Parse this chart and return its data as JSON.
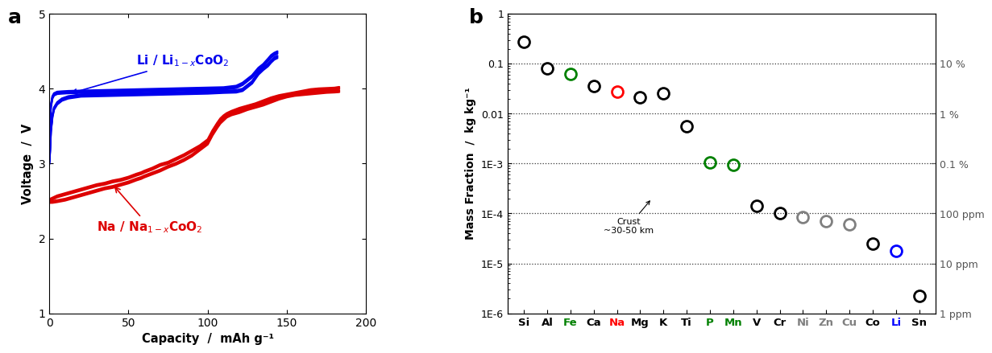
{
  "panel_a": {
    "title_label": "a",
    "xlabel": "Capacity  /  mAh g⁻¹",
    "ylabel": "Voltage  /  V",
    "ylim": [
      1.0,
      5.0
    ],
    "xlim": [
      0,
      200
    ],
    "li_color": "#0000EE",
    "na_color": "#DD0000"
  },
  "panel_b": {
    "title_label": "b",
    "ylabel": "Mass Fraction  /  kg kg⁻¹",
    "ylabel_right": [
      "10 %",
      "1 %",
      "0.1 %",
      "100 ppm",
      "10 ppm",
      "1 ppm"
    ],
    "ylabel_right_vals": [
      0.1,
      0.01,
      0.001,
      0.0001,
      1e-05,
      1e-06
    ],
    "ylim_log": [
      1e-06,
      1.0
    ],
    "elements": [
      "Si",
      "Al",
      "Fe",
      "Ca",
      "Na",
      "Mg",
      "K",
      "Ti",
      "P",
      "Mn",
      "V",
      "Cr",
      "Ni",
      "Zn",
      "Cu",
      "Co",
      "Li",
      "Sn"
    ],
    "values": [
      0.277,
      0.081,
      0.063,
      0.036,
      0.028,
      0.021,
      0.026,
      0.0056,
      0.00105,
      0.00095,
      0.00014,
      0.000102,
      8.5e-05,
      7e-05,
      6e-05,
      2.5e-05,
      1.8e-05,
      2.2e-06
    ],
    "colors": [
      "black",
      "black",
      "green",
      "black",
      "red",
      "black",
      "black",
      "black",
      "green",
      "green",
      "black",
      "black",
      "gray",
      "gray",
      "gray",
      "black",
      "blue",
      "black"
    ],
    "dashed_lines": [
      0.1,
      0.01,
      0.001,
      0.0001,
      1e-05
    ]
  }
}
